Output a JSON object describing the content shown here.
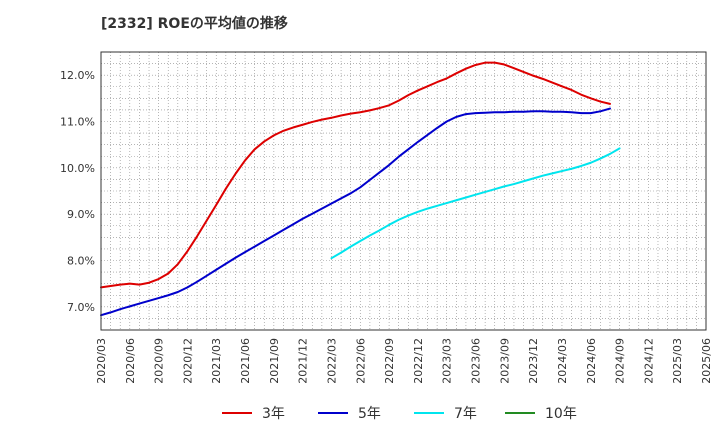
{
  "chart_data": {
    "type": "line",
    "title": "[2332]  ROEの平均値の推移",
    "xlabel": "",
    "ylabel": "",
    "ylim": [
      6.5,
      12.5
    ],
    "y_ticks": [
      7.0,
      8.0,
      9.0,
      10.0,
      11.0,
      12.0
    ],
    "y_tick_labels": [
      "7.0%",
      "8.0%",
      "9.0%",
      "10.0%",
      "11.0%",
      "12.0%"
    ],
    "x_tick_labels": [
      "2020/03",
      "2020/06",
      "2020/09",
      "2020/12",
      "2021/03",
      "2021/06",
      "2021/09",
      "2021/12",
      "2022/03",
      "2022/06",
      "2022/09",
      "2022/12",
      "2023/03",
      "2023/06",
      "2023/09",
      "2023/12",
      "2024/03",
      "2024/06",
      "2024/09",
      "2024/12",
      "2025/03",
      "2025/06"
    ],
    "grid": true,
    "legend_position": "bottom",
    "series": [
      {
        "name": "3年",
        "color": "#dd0000",
        "start_index": 0,
        "values": [
          7.42,
          7.45,
          7.48,
          7.5,
          7.48,
          7.52,
          7.6,
          7.72,
          7.92,
          8.2,
          8.52,
          8.86,
          9.2,
          9.55,
          9.87,
          10.16,
          10.4,
          10.57,
          10.7,
          10.8,
          10.87,
          10.93,
          10.99,
          11.04,
          11.08,
          11.13,
          11.17,
          11.2,
          11.24,
          11.29,
          11.35,
          11.45,
          11.57,
          11.67,
          11.76,
          11.85,
          11.93,
          12.04,
          12.14,
          12.22,
          12.27,
          12.27,
          12.23,
          12.15,
          12.07,
          11.99,
          11.92,
          11.84,
          11.76,
          11.68,
          11.58,
          11.5,
          11.43,
          11.38
        ]
      },
      {
        "name": "5年",
        "color": "#0000cc",
        "start_index": 0,
        "values": [
          6.82,
          6.88,
          6.95,
          7.01,
          7.07,
          7.13,
          7.19,
          7.25,
          7.32,
          7.42,
          7.54,
          7.67,
          7.8,
          7.93,
          8.06,
          8.18,
          8.3,
          8.42,
          8.54,
          8.66,
          8.78,
          8.9,
          9.01,
          9.12,
          9.23,
          9.34,
          9.45,
          9.58,
          9.74,
          9.9,
          10.06,
          10.24,
          10.4,
          10.56,
          10.71,
          10.86,
          11.0,
          11.1,
          11.16,
          11.18,
          11.19,
          11.2,
          11.2,
          11.21,
          11.21,
          11.22,
          11.22,
          11.21,
          11.21,
          11.2,
          11.18,
          11.18,
          11.22,
          11.28
        ]
      },
      {
        "name": "7年",
        "color": "#00e5ee",
        "start_index": 24,
        "values": [
          8.05,
          8.17,
          8.3,
          8.42,
          8.54,
          8.65,
          8.77,
          8.88,
          8.97,
          9.05,
          9.12,
          9.18,
          9.24,
          9.3,
          9.36,
          9.42,
          9.48,
          9.54,
          9.6,
          9.65,
          9.71,
          9.77,
          9.83,
          9.88,
          9.93,
          9.98,
          10.04,
          10.11,
          10.2,
          10.3,
          10.42
        ]
      },
      {
        "name": "10年",
        "color": "#228b22",
        "start_index": 0,
        "values": []
      }
    ]
  }
}
